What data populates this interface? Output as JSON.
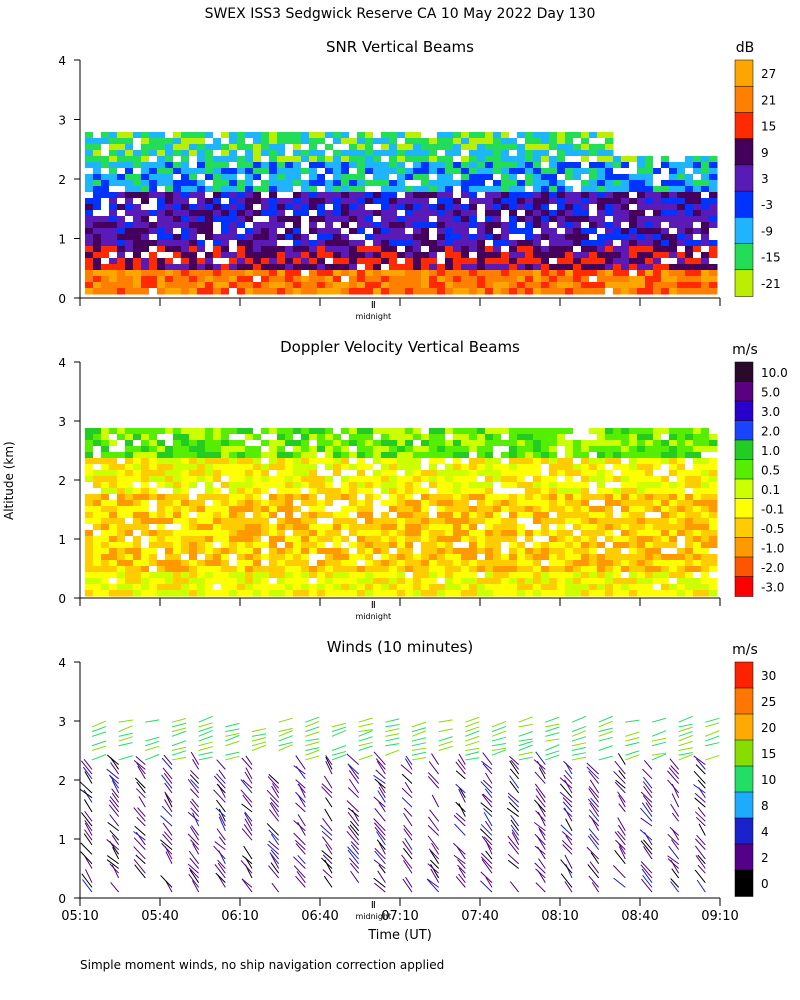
{
  "figure": {
    "title": "SWEX ISS3 Sedgwick Reserve CA  10 May 2022 Day 130",
    "y_axis_label": "Altitude (km)",
    "x_axis_label": "Time (UT)",
    "footnote": "Simple moment winds, no ship navigation correction applied",
    "midnight_label": "midnight"
  },
  "panels": {
    "snr": {
      "title": "SNR Vertical Beams",
      "unit": "dB",
      "colorbar_labels": [
        "27",
        "21",
        "15",
        "9",
        "3",
        "-3",
        "-9",
        "-15",
        "-21"
      ],
      "colorbar_colors": [
        "#ffa500",
        "#ff7f00",
        "#ff2a00",
        "#44005a",
        "#5a1ab8",
        "#0033ff",
        "#1eb4ff",
        "#22dd55",
        "#bbee00"
      ]
    },
    "doppler": {
      "title": "Doppler Velocity Vertical Beams",
      "unit": "m/s",
      "colorbar_labels": [
        "10.0",
        "5.0",
        "3.0",
        "2.0",
        "1.0",
        "0.5",
        "0.1",
        "-0.1",
        "-0.5",
        "-1.0",
        "-2.0",
        "-3.0"
      ],
      "colorbar_colors": [
        "#2a0a2a",
        "#5a0080",
        "#2a00cc",
        "#1a44ff",
        "#22cc22",
        "#55ee00",
        "#ccff00",
        "#ffff00",
        "#ffcc00",
        "#ff9900",
        "#ff5500",
        "#ff0000"
      ]
    },
    "winds": {
      "title": "Winds (10 minutes)",
      "unit": "m/s",
      "colorbar_labels": [
        "30",
        "25",
        "20",
        "15",
        "10",
        "8",
        "4",
        "2",
        "0"
      ],
      "colorbar_colors": [
        "#ff2200",
        "#ff7700",
        "#ffaa00",
        "#88dd00",
        "#22dd66",
        "#1eaaff",
        "#1a22cc",
        "#550088",
        "#000000"
      ]
    }
  },
  "chart_data": [
    {
      "type": "heatmap",
      "title": "SNR Vertical Beams",
      "ylabel": "Altitude (km)",
      "ylim": [
        0,
        4
      ],
      "yticks": [
        0,
        1,
        2,
        3,
        4
      ],
      "xlim": [
        "05:10",
        "09:10"
      ],
      "units": "dB",
      "color_scale": [
        27,
        21,
        15,
        9,
        3,
        -3,
        -9,
        -15,
        -21
      ],
      "layers": [
        {
          "bottom_km": 0.1,
          "top_km": 0.5,
          "snr_db": 21
        },
        {
          "bottom_km": 0.5,
          "top_km": 0.9,
          "snr_db": 9
        },
        {
          "bottom_km": 0.9,
          "top_km": 1.8,
          "snr_db": 0
        },
        {
          "bottom_km": 1.8,
          "top_km": 2.3,
          "snr_db": -12
        },
        {
          "bottom_km": 2.3,
          "top_km": 2.8,
          "snr_db": -18
        }
      ]
    },
    {
      "type": "heatmap",
      "title": "Doppler Velocity Vertical Beams",
      "ylabel": "Altitude (km)",
      "ylim": [
        0,
        4
      ],
      "yticks": [
        0,
        1,
        2,
        3,
        4
      ],
      "xlim": [
        "05:10",
        "09:10"
      ],
      "units": "m/s",
      "color_scale": [
        10.0,
        5.0,
        3.0,
        2.0,
        1.0,
        0.5,
        0.1,
        -0.1,
        -0.5,
        -1.0,
        -2.0,
        -3.0
      ],
      "layers": [
        {
          "bottom_km": 0.1,
          "top_km": 0.5,
          "velocity_ms": -0.1
        },
        {
          "bottom_km": 0.5,
          "top_km": 1.8,
          "velocity_ms": -0.8
        },
        {
          "bottom_km": 1.8,
          "top_km": 2.4,
          "velocity_ms": -0.2
        },
        {
          "bottom_km": 2.4,
          "top_km": 2.9,
          "velocity_ms": 0.2
        }
      ]
    },
    {
      "type": "scatter",
      "title": "Winds (10 minutes)",
      "xlabel": "Time (UT)",
      "ylabel": "Altitude (km)",
      "ylim": [
        0,
        4
      ],
      "yticks": [
        0,
        1,
        2,
        3,
        4
      ],
      "x_tick_labels": [
        "05:10",
        "05:40",
        "06:10",
        "06:40",
        "07:10",
        "07:40",
        "08:10",
        "08:40",
        "09:10"
      ],
      "units": "m/s",
      "color_scale": [
        30,
        25,
        20,
        15,
        10,
        8,
        4,
        2,
        0
      ],
      "profile_times": [
        "05:10",
        "05:20",
        "05:30",
        "05:40",
        "05:50",
        "06:00",
        "06:10",
        "06:20",
        "06:30",
        "06:40",
        "06:50",
        "07:00",
        "07:10",
        "07:20",
        "07:30",
        "07:40",
        "07:50",
        "08:00",
        "08:10",
        "08:20",
        "08:30",
        "08:40",
        "08:50",
        "09:00"
      ],
      "top_altitude_km": 3.0,
      "upper_wind_ms": 15,
      "lower_wind_ms": 3
    }
  ]
}
